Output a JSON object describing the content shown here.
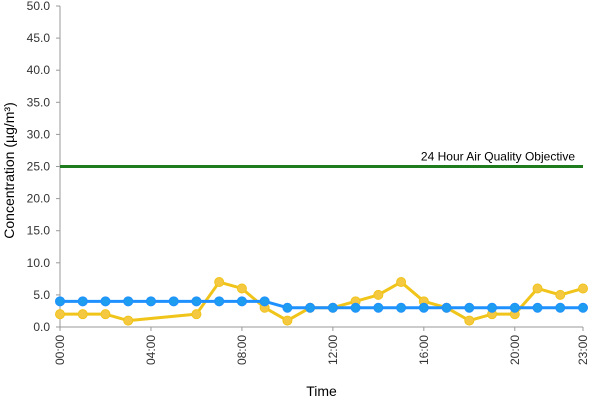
{
  "chart_data": {
    "type": "line",
    "xlabel": "Time",
    "ylabel": "Concentration (µg/m³)",
    "y_ticks": [
      "0.0",
      "5.0",
      "10.0",
      "15.0",
      "20.0",
      "25.0",
      "30.0",
      "35.0",
      "40.0",
      "45.0",
      "50.0"
    ],
    "ylim": [
      0,
      50
    ],
    "x_ticks": [
      {
        "hour": 0,
        "label": "00:00"
      },
      {
        "hour": 4,
        "label": "04:00"
      },
      {
        "hour": 8,
        "label": "08:00"
      },
      {
        "hour": 12,
        "label": "12:00"
      },
      {
        "hour": 16,
        "label": "16:00"
      },
      {
        "hour": 20,
        "label": "20:00"
      },
      {
        "hour": 23,
        "label": "23:00"
      }
    ],
    "xlim": [
      0,
      23
    ],
    "grid": false,
    "series": [
      {
        "color": "#f0c419",
        "marker_color": "#f5c842",
        "points": [
          [
            0,
            2
          ],
          [
            1,
            2
          ],
          [
            2,
            2
          ],
          [
            3,
            1
          ],
          [
            6,
            2
          ],
          [
            7,
            7
          ],
          [
            8,
            6
          ],
          [
            9,
            3
          ],
          [
            10,
            1
          ],
          [
            11,
            3
          ],
          [
            12,
            3
          ],
          [
            13,
            4
          ],
          [
            14,
            5
          ],
          [
            15,
            7
          ],
          [
            16,
            4
          ],
          [
            17,
            3
          ],
          [
            18,
            1
          ],
          [
            19,
            2
          ],
          [
            20,
            2
          ],
          [
            21,
            6
          ],
          [
            22,
            5
          ],
          [
            23,
            6
          ]
        ]
      },
      {
        "color": "#1e90ff",
        "marker_color": "#1e9cf0",
        "points": [
          [
            0,
            4
          ],
          [
            1,
            4
          ],
          [
            2,
            4
          ],
          [
            3,
            4
          ],
          [
            4,
            4
          ],
          [
            5,
            4
          ],
          [
            6,
            4
          ],
          [
            7,
            4
          ],
          [
            8,
            4
          ],
          [
            9,
            4
          ],
          [
            10,
            3
          ],
          [
            11,
            3
          ],
          [
            12,
            3
          ],
          [
            13,
            3
          ],
          [
            14,
            3
          ],
          [
            15,
            3
          ],
          [
            16,
            3
          ],
          [
            17,
            3
          ],
          [
            18,
            3
          ],
          [
            19,
            3
          ],
          [
            20,
            3
          ],
          [
            21,
            3
          ],
          [
            22,
            3
          ],
          [
            23,
            3
          ]
        ]
      }
    ],
    "reference_line": {
      "value": 25,
      "label": "24 Hour Air Quality Objective",
      "color": "#1e7b1e"
    }
  }
}
